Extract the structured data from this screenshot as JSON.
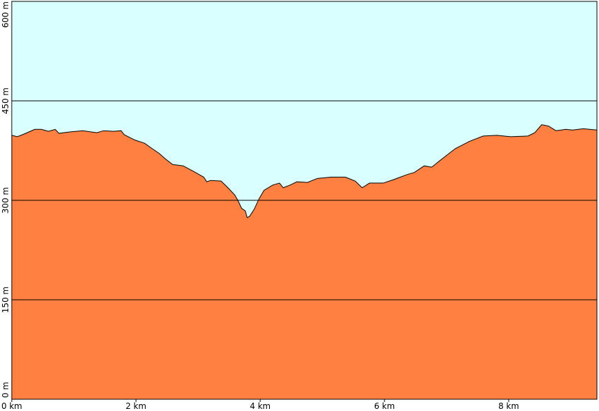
{
  "chart_data": {
    "type": "area",
    "x": [
      0,
      0.09,
      0.2,
      0.37,
      0.48,
      0.59,
      0.7,
      0.76,
      0.92,
      1.14,
      1.37,
      1.48,
      1.64,
      1.76,
      1.81,
      1.98,
      2.14,
      2.26,
      2.37,
      2.48,
      2.59,
      2.76,
      2.92,
      3.09,
      3.14,
      3.2,
      3.37,
      3.48,
      3.59,
      3.64,
      3.7,
      3.76,
      3.79,
      3.83,
      3.9,
      3.98,
      4.06,
      4.2,
      4.31,
      4.37,
      4.48,
      4.59,
      4.76,
      4.92,
      5.14,
      5.37,
      5.53,
      5.64,
      5.76,
      5.98,
      6.14,
      6.37,
      6.48,
      6.64,
      6.76,
      6.92,
      7.14,
      7.37,
      7.59,
      7.81,
      8.03,
      8.31,
      8.42,
      8.53,
      8.64,
      8.76,
      8.92,
      9.03,
      9.2,
      9.42
    ],
    "values": [
      398,
      396,
      400,
      407,
      407,
      404,
      407,
      401,
      403,
      405,
      402,
      405,
      404,
      405,
      399,
      391,
      386,
      378,
      371,
      362,
      354,
      352,
      344,
      335,
      328,
      330,
      329,
      319,
      308,
      300,
      288,
      284,
      274,
      276,
      286,
      302,
      315,
      323,
      326,
      319,
      323,
      328,
      327,
      333,
      335,
      335,
      329,
      319,
      326,
      326,
      331,
      339,
      342,
      352,
      350,
      362,
      378,
      389,
      397,
      398,
      396,
      397,
      402,
      414,
      412,
      405,
      407,
      406,
      408,
      406
    ],
    "color": "#ff8040",
    "background": "#d9ffff",
    "xlim": [
      0,
      9.42
    ],
    "ylim": [
      0,
      600
    ],
    "xticks": [
      {
        "value": 0,
        "label": "0 km"
      },
      {
        "value": 2,
        "label": "2 km"
      },
      {
        "value": 4,
        "label": "4 km"
      },
      {
        "value": 6,
        "label": "6 km"
      },
      {
        "value": 8,
        "label": "8 km"
      }
    ],
    "yticks": [
      {
        "value": 0,
        "label": "0 m"
      },
      {
        "value": 150,
        "label": "150 m"
      },
      {
        "value": 300,
        "label": "300 m"
      },
      {
        "value": 450,
        "label": "450 m"
      },
      {
        "value": 600,
        "label": "600 m"
      }
    ],
    "grid": true
  }
}
